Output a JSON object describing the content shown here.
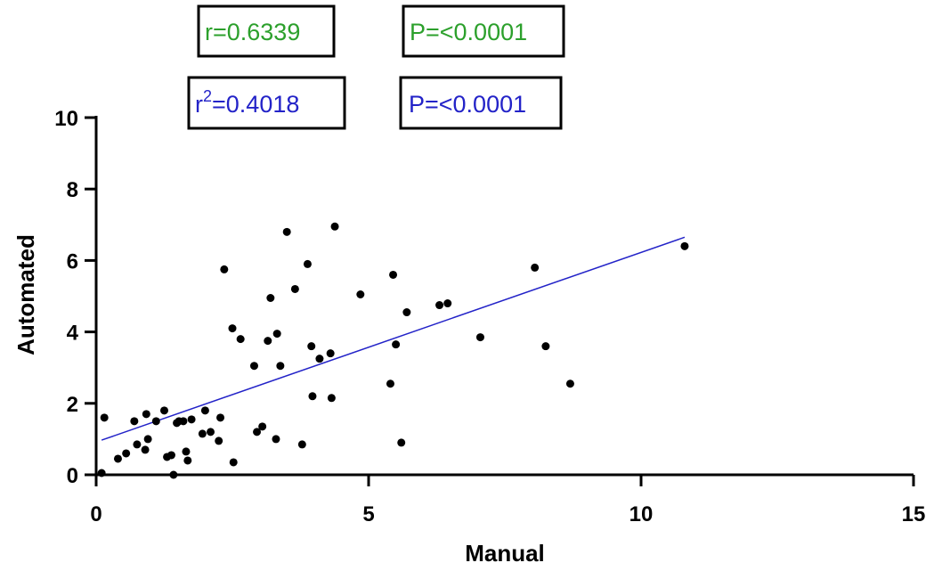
{
  "chart_data": {
    "type": "scatter",
    "xlabel": "Manual",
    "ylabel": "Automated",
    "xlim": [
      0,
      15
    ],
    "ylim": [
      0,
      10
    ],
    "x_ticks": [
      0,
      5,
      10,
      15
    ],
    "y_ticks": [
      0,
      2,
      4,
      6,
      8,
      10
    ],
    "x_tick_labels": [
      "0",
      "5",
      "10",
      "15"
    ],
    "y_tick_labels": [
      "0",
      "2",
      "4",
      "6",
      "8",
      "10"
    ],
    "grid": false,
    "points": [
      [
        0.1,
        0.05
      ],
      [
        0.15,
        1.6
      ],
      [
        0.4,
        0.45
      ],
      [
        0.55,
        0.6
      ],
      [
        0.7,
        1.5
      ],
      [
        0.75,
        0.85
      ],
      [
        0.9,
        0.7
      ],
      [
        0.92,
        1.7
      ],
      [
        0.95,
        1.0
      ],
      [
        1.1,
        1.5
      ],
      [
        1.25,
        1.8
      ],
      [
        1.3,
        0.5
      ],
      [
        1.38,
        0.55
      ],
      [
        1.42,
        0.0
      ],
      [
        1.48,
        1.45
      ],
      [
        1.52,
        1.5
      ],
      [
        1.6,
        1.5
      ],
      [
        1.65,
        0.65
      ],
      [
        1.68,
        0.4
      ],
      [
        1.75,
        1.55
      ],
      [
        1.95,
        1.15
      ],
      [
        2.0,
        1.8
      ],
      [
        2.1,
        1.2
      ],
      [
        2.25,
        0.95
      ],
      [
        2.28,
        1.6
      ],
      [
        2.35,
        5.75
      ],
      [
        2.5,
        4.1
      ],
      [
        2.52,
        0.35
      ],
      [
        2.65,
        3.8
      ],
      [
        2.9,
        3.05
      ],
      [
        2.95,
        1.2
      ],
      [
        3.05,
        1.35
      ],
      [
        3.15,
        3.75
      ],
      [
        3.2,
        4.95
      ],
      [
        3.3,
        1.0
      ],
      [
        3.32,
        3.95
      ],
      [
        3.38,
        3.05
      ],
      [
        3.5,
        6.8
      ],
      [
        3.65,
        5.2
      ],
      [
        3.78,
        0.85
      ],
      [
        3.88,
        5.9
      ],
      [
        3.95,
        3.6
      ],
      [
        3.97,
        2.2
      ],
      [
        4.1,
        3.25
      ],
      [
        4.3,
        3.4
      ],
      [
        4.32,
        2.15
      ],
      [
        4.38,
        6.95
      ],
      [
        4.85,
        5.05
      ],
      [
        5.4,
        2.55
      ],
      [
        5.45,
        5.6
      ],
      [
        5.5,
        3.65
      ],
      [
        5.6,
        0.9
      ],
      [
        5.7,
        4.55
      ],
      [
        6.3,
        4.75
      ],
      [
        6.45,
        4.8
      ],
      [
        7.05,
        3.85
      ],
      [
        8.05,
        5.8
      ],
      [
        8.25,
        3.6
      ],
      [
        8.7,
        2.55
      ],
      [
        10.8,
        6.4
      ]
    ],
    "regression_line": {
      "x": [
        0.1,
        10.8
      ],
      "y": [
        0.97,
        6.65
      ]
    },
    "annotations": [
      {
        "text": "r=0.6339",
        "color": "#2ca02c"
      },
      {
        "text": "P=<0.0001",
        "color": "#2ca02c"
      },
      {
        "base": "r",
        "sup": "2",
        "rest": "=0.4018",
        "color": "#2323c8"
      },
      {
        "text": "P=<0.0001",
        "color": "#2323c8"
      }
    ],
    "colors": {
      "points": "#000000",
      "line": "#2323c8",
      "green": "#2ca02c",
      "blue": "#2323c8"
    }
  }
}
